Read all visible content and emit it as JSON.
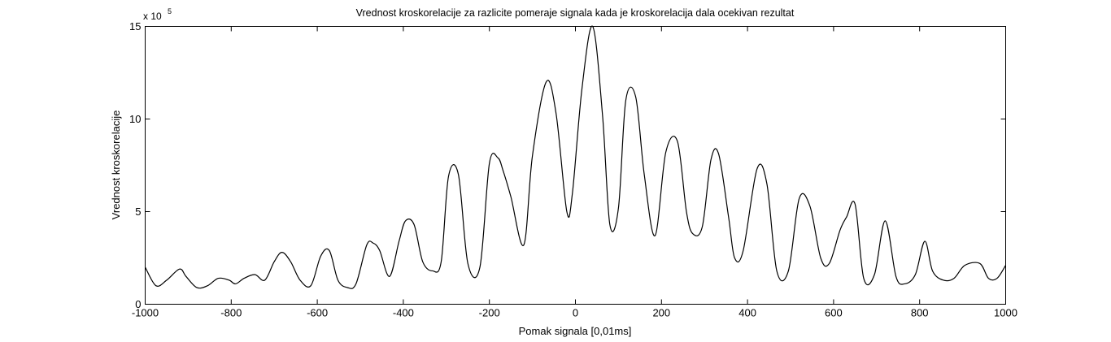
{
  "chart_data": {
    "type": "line",
    "title": "Vrednost kroskorelacije za razlicite pomeraje signala kada je kroskorelacija dala ocekivan rezultat",
    "xlabel": "Pomak signala [0,01ms]",
    "ylabel": "Vrednost kroskorelacije",
    "y_multiplier_label": "x 10",
    "y_multiplier_exponent": "5",
    "xlim": [
      -1000,
      1000
    ],
    "ylim": [
      0,
      15
    ],
    "xticks": [
      -1000,
      -800,
      -600,
      -400,
      -200,
      0,
      200,
      400,
      600,
      800,
      1000
    ],
    "yticks": [
      0,
      5,
      10,
      15
    ],
    "grid": false,
    "legend": "none",
    "line_color": "#000000",
    "series": [
      {
        "x": [
          -1000,
          -975,
          -950,
          -920,
          -905,
          -880,
          -855,
          -830,
          -805,
          -790,
          -770,
          -745,
          -722,
          -700,
          -682,
          -662,
          -640,
          -615,
          -592,
          -572,
          -552,
          -530,
          -510,
          -485,
          -470,
          -455,
          -432,
          -410,
          -395,
          -375,
          -355,
          -332,
          -312,
          -295,
          -272,
          -250,
          -222,
          -200,
          -180,
          -168,
          -150,
          -120,
          -100,
          -68,
          -45,
          -20,
          -7,
          15,
          40,
          63,
          80,
          100,
          117,
          140,
          160,
          185,
          210,
          237,
          258,
          273,
          295,
          315,
          333,
          356,
          370,
          390,
          422,
          445,
          468,
          495,
          520,
          545,
          570,
          590,
          615,
          630,
          650,
          670,
          695,
          720,
          745,
          765,
          790,
          812,
          830,
          855,
          880,
          905,
          940,
          960,
          980,
          1000
        ],
        "y": [
          2.0,
          1.0,
          1.3,
          1.9,
          1.5,
          0.9,
          1.0,
          1.4,
          1.3,
          1.1,
          1.4,
          1.6,
          1.3,
          2.3,
          2.8,
          2.3,
          1.3,
          1.0,
          2.6,
          2.9,
          1.3,
          0.9,
          1.1,
          3.2,
          3.3,
          2.9,
          1.5,
          3.4,
          4.5,
          4.3,
          2.3,
          1.8,
          2.3,
          6.9,
          7.0,
          2.2,
          2.0,
          7.6,
          7.9,
          7.2,
          5.8,
          3.2,
          8.0,
          12.0,
          10.3,
          5.0,
          6.0,
          11.6,
          15.0,
          10.2,
          4.3,
          5.2,
          11.0,
          11.2,
          7.0,
          3.7,
          8.2,
          8.8,
          5.0,
          3.8,
          4.2,
          7.8,
          8.1,
          4.7,
          2.5,
          2.9,
          7.3,
          6.5,
          1.8,
          1.8,
          5.7,
          5.3,
          2.5,
          2.2,
          4.0,
          4.7,
          5.4,
          1.4,
          1.6,
          4.5,
          1.5,
          1.1,
          1.6,
          3.4,
          1.8,
          1.3,
          1.4,
          2.1,
          2.2,
          1.4,
          1.4,
          2.1
        ]
      }
    ]
  }
}
